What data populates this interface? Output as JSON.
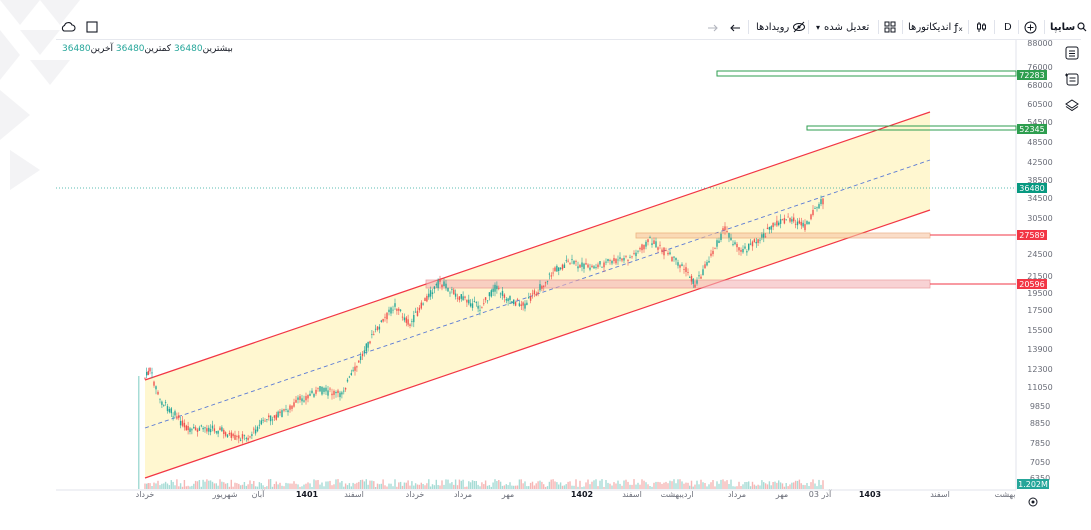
{
  "toolbar": {
    "symbol": "سایپا",
    "interval": "D",
    "indicators_label": "اندیکاتورها",
    "adjusted_label": "تعدیل شده",
    "events_label": "رویدادها"
  },
  "legend": {
    "high_label": "بیشترین",
    "high_value": "36480",
    "low_label": "کمترین",
    "low_value": "36480",
    "last_label": "آخرین",
    "last_value": "36480"
  },
  "price_axis": {
    "ticks": [
      "88000",
      "76000",
      "68000",
      "60500",
      "54500",
      "48500",
      "42500",
      "38500",
      "34500",
      "30500",
      "24500",
      "21500",
      "19500",
      "17500",
      "15500",
      "13900",
      "12300",
      "11050",
      "9850",
      "8850",
      "7850",
      "7050",
      "6350"
    ]
  },
  "price_tags": {
    "level_green_1": "72283",
    "level_green_2": "52345",
    "current": "36480",
    "level_red_1": "27589",
    "level_red_2": "20596",
    "volume": "1.202M"
  },
  "time_axis": {
    "labels": [
      "خرداد",
      "شهریور",
      "آبان",
      "1401",
      "اسفند",
      "خرداد",
      "مرداد",
      "مهر",
      "1402",
      "اسفند",
      "اردیبهشت",
      "مرداد",
      "مهر",
      "03 آذر",
      "1403",
      "اسفند",
      "بهشت"
    ]
  },
  "colors": {
    "accent_green": "#26a69a",
    "accent_red": "#ef5350",
    "channel_fill": "#fff8d6",
    "channel_line": "#f23645",
    "current_price": "#089981",
    "level_green": "#2e9e4f"
  }
}
